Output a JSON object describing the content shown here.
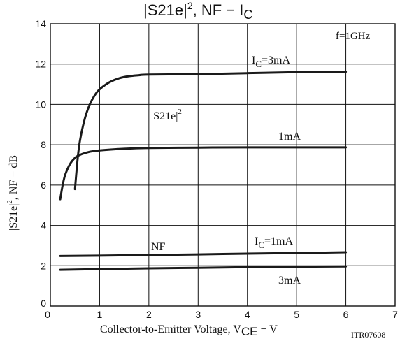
{
  "chart_data": {
    "type": "line",
    "title_parts": {
      "s21e": "|S21e|",
      "sup": "2",
      "mid": ", NF − I",
      "sub": "C"
    },
    "xlabel_parts": {
      "main": "Collector-to-Emitter Voltage, V",
      "sub": "CE",
      "tail": " − V"
    },
    "ylabel_parts": {
      "main": "|S21e|",
      "sup": "2",
      "tail": ", NF − dB"
    },
    "code": "ITR07608",
    "condition": "f=1GHz",
    "xlim": [
      0,
      7
    ],
    "ylim": [
      0,
      14
    ],
    "x_ticks": [
      "0",
      "1",
      "2",
      "3",
      "4",
      "5",
      "6",
      "7"
    ],
    "y_ticks": [
      "0",
      "2",
      "4",
      "6",
      "8",
      "10",
      "12",
      "14"
    ],
    "grid": true,
    "annotations": {
      "ic3": {
        "main": "I",
        "sub": "C",
        "tail": "=3mA"
      },
      "ic1_s21": "1mA",
      "s21": {
        "main": "|S21e|",
        "sup": "2"
      },
      "nf": "NF",
      "ic1_nf": {
        "main": "I",
        "sub": "C",
        "tail": "=1mA"
      },
      "ic3_nf": "3mA"
    },
    "series": [
      {
        "id": "s21-3ma",
        "points": [
          [
            0.5,
            5.8
          ],
          [
            0.55,
            7.2
          ],
          [
            0.6,
            8.2
          ],
          [
            0.7,
            9.3
          ],
          [
            0.8,
            10.0
          ],
          [
            0.9,
            10.45
          ],
          [
            1.0,
            10.75
          ],
          [
            1.2,
            11.1
          ],
          [
            1.4,
            11.3
          ],
          [
            1.6,
            11.4
          ],
          [
            1.8,
            11.45
          ],
          [
            2.0,
            11.48
          ],
          [
            3.0,
            11.5
          ],
          [
            4.0,
            11.55
          ],
          [
            5.0,
            11.6
          ],
          [
            6.0,
            11.62
          ]
        ]
      },
      {
        "id": "s21-1ma",
        "points": [
          [
            0.2,
            5.3
          ],
          [
            0.25,
            6.0
          ],
          [
            0.3,
            6.5
          ],
          [
            0.4,
            7.05
          ],
          [
            0.5,
            7.35
          ],
          [
            0.6,
            7.5
          ],
          [
            0.8,
            7.65
          ],
          [
            1.0,
            7.72
          ],
          [
            1.5,
            7.8
          ],
          [
            2.0,
            7.84
          ],
          [
            3.0,
            7.86
          ],
          [
            4.0,
            7.87
          ],
          [
            6.0,
            7.87
          ]
        ]
      },
      {
        "id": "nf-1ma",
        "points": [
          [
            0.2,
            2.48
          ],
          [
            1.0,
            2.5
          ],
          [
            2.0,
            2.53
          ],
          [
            3.0,
            2.56
          ],
          [
            4.0,
            2.6
          ],
          [
            5.0,
            2.63
          ],
          [
            6.0,
            2.67
          ]
        ]
      },
      {
        "id": "nf-3ma",
        "points": [
          [
            0.2,
            1.8
          ],
          [
            1.0,
            1.83
          ],
          [
            2.0,
            1.87
          ],
          [
            3.0,
            1.9
          ],
          [
            4.0,
            1.93
          ],
          [
            5.0,
            1.95
          ],
          [
            6.0,
            1.97
          ]
        ]
      }
    ]
  }
}
